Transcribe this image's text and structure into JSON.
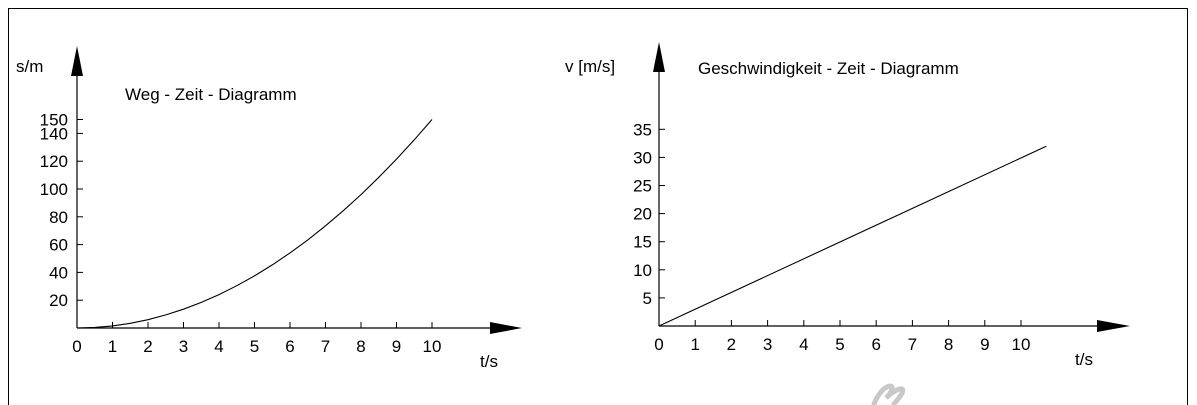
{
  "chart_data": [
    {
      "type": "line",
      "title": "Weg - Zeit - Diagramm",
      "xlabel": "t/s",
      "ylabel": "s/m",
      "x_ticks": [
        "0",
        "1",
        "2",
        "3",
        "4",
        "5",
        "6",
        "7",
        "8",
        "9",
        "10"
      ],
      "y_ticks": [
        "20",
        "40",
        "60",
        "80",
        "100",
        "120",
        "140",
        "150"
      ],
      "xlim": [
        0,
        12
      ],
      "ylim": [
        0,
        170
      ],
      "grid": false,
      "series": [
        {
          "x": [
            0,
            0.5,
            1,
            1.5,
            2,
            2.5,
            3,
            3.5,
            4,
            4.5,
            5,
            5.5,
            6,
            6.5,
            7,
            7.5,
            8,
            8.5,
            9,
            9.5,
            10
          ],
          "values": [
            0,
            0.4,
            1.5,
            3.4,
            6,
            9.4,
            13.5,
            18.4,
            24,
            30.4,
            37.5,
            45.4,
            54,
            63.4,
            73.5,
            84.4,
            96,
            108.4,
            121.5,
            135.4,
            150
          ]
        }
      ]
    },
    {
      "type": "line",
      "title": "Geschwindigkeit - Zeit - Diagramm",
      "xlabel": "t/s",
      "ylabel": "v [m/s]",
      "x_ticks": [
        "0",
        "1",
        "2",
        "3",
        "4",
        "5",
        "6",
        "7",
        "8",
        "9",
        "10"
      ],
      "y_ticks": [
        "5",
        "10",
        "15",
        "20",
        "25",
        "30",
        "35"
      ],
      "xlim": [
        0,
        12
      ],
      "ylim": [
        0,
        40
      ],
      "grid": false,
      "series": [
        {
          "x": [
            0,
            10.7
          ],
          "values": [
            0,
            32
          ]
        }
      ]
    }
  ]
}
